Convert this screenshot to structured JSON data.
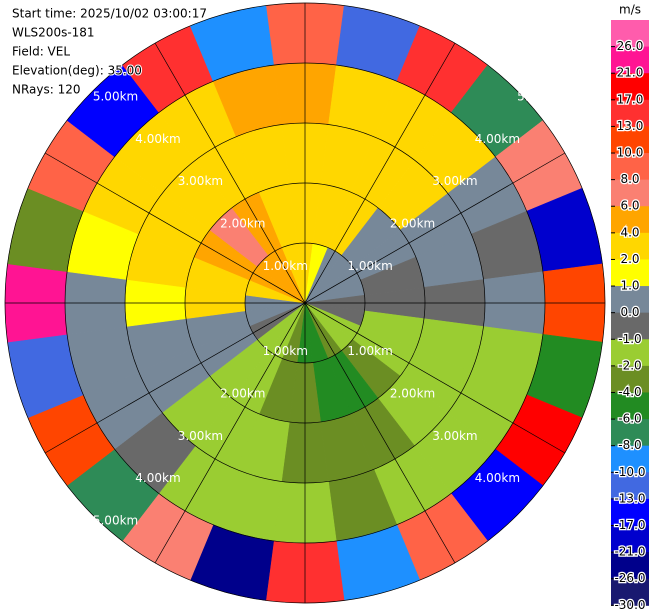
{
  "chart_data": {
    "type": "ppi",
    "header": [
      "Start time: 2025/10/02 03:00:17",
      "WLS200s-181",
      "Field: VEL",
      "Elevation(deg): 35.00",
      "NRays: 120"
    ],
    "azimuths": [
      0,
      15,
      30,
      45,
      60,
      75,
      90,
      105,
      120,
      135,
      150,
      165,
      180,
      195,
      210,
      225,
      240,
      255,
      270,
      285,
      300,
      315,
      330,
      345
    ],
    "rlim": [
      0,
      5
    ],
    "rticks": [
      {
        "value": 1,
        "label": "1.00km"
      },
      {
        "value": 2,
        "label": "2.00km"
      },
      {
        "value": 3,
        "label": "3.00km"
      },
      {
        "value": 4,
        "label": "4.00km"
      },
      {
        "value": 5,
        "label": "5.00km"
      }
    ],
    "values": [
      [
        2,
        1,
        0,
        0,
        0,
        0,
        -1,
        -1,
        -2,
        -2,
        -4,
        -6,
        -6,
        -4,
        -2,
        -2,
        -1,
        0,
        0,
        2,
        4,
        4,
        4,
        2
      ],
      [
        2,
        2,
        2,
        0,
        0,
        -1,
        -1,
        -2,
        -2,
        -4,
        -6,
        -6,
        -4,
        -4,
        -2,
        -2,
        0,
        0,
        2,
        2,
        4,
        6,
        4,
        2
      ],
      [
        2,
        2,
        2,
        2,
        0,
        0,
        -1,
        -2,
        -2,
        -2,
        -4,
        -4,
        -4,
        -2,
        -2,
        -2,
        0,
        0,
        1,
        2,
        2,
        2,
        2,
        2
      ],
      [
        4,
        2,
        2,
        2,
        0,
        -1,
        0,
        -2,
        -2,
        -2,
        -2,
        -4,
        -2,
        -2,
        -2,
        -1,
        0,
        0,
        0,
        1,
        2,
        2,
        2,
        4
      ],
      [
        8,
        -13,
        13,
        -8,
        6,
        -21,
        10,
        -6,
        17,
        -17,
        8,
        -10,
        13,
        -26,
        6,
        -8,
        10,
        -13,
        21,
        -4,
        8,
        -17,
        13,
        -10
      ]
    ],
    "colorbar": {
      "title": "m/s",
      "ticks": [
        {
          "value": 26,
          "label": "26.0"
        },
        {
          "value": 21,
          "label": "21.0"
        },
        {
          "value": 17,
          "label": "17.0"
        },
        {
          "value": 13,
          "label": "13.0"
        },
        {
          "value": 10,
          "label": "10.0"
        },
        {
          "value": 8,
          "label": "8.0"
        },
        {
          "value": 6,
          "label": "6.0"
        },
        {
          "value": 4,
          "label": "4.0"
        },
        {
          "value": 2,
          "label": "2.0"
        },
        {
          "value": 1,
          "label": "1.0"
        },
        {
          "value": 0,
          "label": "0.0"
        },
        {
          "value": -1,
          "label": "-1.0"
        },
        {
          "value": -2,
          "label": "-2.0"
        },
        {
          "value": -4,
          "label": "-4.0"
        },
        {
          "value": -6,
          "label": "-6.0"
        },
        {
          "value": -8,
          "label": "-8.0"
        },
        {
          "value": -10,
          "label": "-10.0"
        },
        {
          "value": -13,
          "label": "-13.0"
        },
        {
          "value": -17,
          "label": "-17.0"
        },
        {
          "value": -21,
          "label": "-21.0"
        },
        {
          "value": -26,
          "label": "-26.0"
        },
        {
          "value": -30,
          "label": "-30.0"
        }
      ],
      "colors": [
        "#ff5cac",
        "#ff1493",
        "#ff0000",
        "#ff3030",
        "#ff4500",
        "#ff6347",
        "#fa8072",
        "#ffa500",
        "#ffd700",
        "#ffff00",
        "#778899",
        "#696969",
        "#9acd32",
        "#6b8e23",
        "#228b22",
        "#2e8b57",
        "#1e90ff",
        "#4169e1",
        "#0000ff",
        "#0000cd",
        "#00008b",
        "#191970"
      ]
    }
  }
}
